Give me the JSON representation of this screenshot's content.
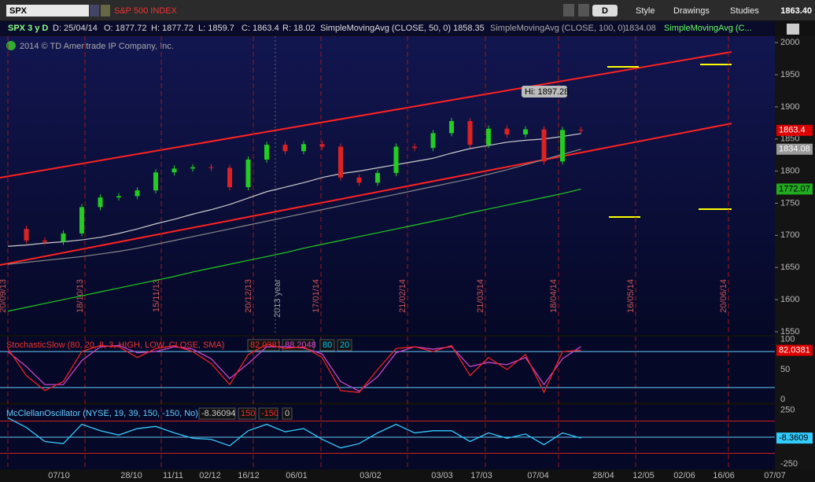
{
  "toolbar": {
    "symbol": "SPX",
    "description": "S&P 500 INDEX",
    "aggregation": "D",
    "style": "Style",
    "drawings": "Drawings",
    "studies": "Studies",
    "last": "1863.40"
  },
  "info_bar": {
    "chart": "SPX 3 y D",
    "date": "D: 25/04/14",
    "open": "O: 1877.72",
    "high": "H: 1877.72",
    "low": "L: 1859.7",
    "close": "C: 1863.4",
    "range": "R: 18.02",
    "sma1_name": "SimpleMovingAvg (CLOSE, 50, 0)",
    "sma1_value": "1858.35",
    "sma2_name": "SimpleMovingAvg (CLOSE, 100, 0)",
    "sma2_value": "1834.08",
    "sma3_name": "SimpleMovingAvg (C..."
  },
  "copyright": "2014 © TD Ameritrade IP Company, Inc.",
  "price_panel": {
    "ylim": [
      1545,
      2010
    ],
    "yticks": [
      2000,
      1950,
      1900,
      1850,
      1800,
      1750,
      1700,
      1650,
      1600,
      1550
    ],
    "closes": [
      1710,
      1692,
      1690,
      1703,
      1744,
      1759,
      1761,
      1770,
      1798,
      1804,
      1806,
      1805,
      1775,
      1818,
      1841,
      1831,
      1842,
      1838,
      1790,
      1782,
      1797,
      1838,
      1836,
      1859,
      1878,
      1841,
      1866,
      1857,
      1865,
      1815,
      1864,
      1863.4
    ],
    "sma50": [
      1683,
      1685,
      1688,
      1690,
      1693,
      1697,
      1703,
      1710,
      1718,
      1725,
      1733,
      1740,
      1748,
      1758,
      1768,
      1775,
      1782,
      1790,
      1796,
      1800,
      1805,
      1810,
      1815,
      1820,
      1828,
      1835,
      1840,
      1845,
      1848,
      1850,
      1854,
      1858.35
    ],
    "sma100": [
      1655,
      1658,
      1661,
      1664,
      1667,
      1671,
      1675,
      1680,
      1686,
      1692,
      1698,
      1704,
      1710,
      1716,
      1722,
      1728,
      1734,
      1740,
      1746,
      1752,
      1758,
      1764,
      1770,
      1776,
      1782,
      1788,
      1795,
      1802,
      1810,
      1818,
      1826,
      1834.08
    ],
    "sma3": [
      1582,
      1588,
      1594,
      1600,
      1606,
      1612,
      1618,
      1624,
      1630,
      1636,
      1643,
      1649,
      1655,
      1661,
      1667,
      1673,
      1680,
      1686,
      1692,
      1698,
      1704,
      1710,
      1716,
      1722,
      1728,
      1735,
      1741,
      1747,
      1753,
      1759,
      1765,
      1772.07
    ],
    "last_label": "1863.4",
    "sma2_label": "1834.08",
    "sma3_label": "1772.07",
    "high_label": "Hi: 1897.28",
    "expiration_dates": [
      "20/09/13",
      "18/10/13",
      "15/11/13",
      "20/12/13",
      "17/01/14",
      "21/02/14",
      "21/03/14",
      "18/04/14",
      "16/05/14",
      "20/06/14"
    ],
    "year_label": "2013 year"
  },
  "stochastic": {
    "title": "StochasticSlow (80, 20, 8, 3, HIGH, LOW, CLOSE, SMA)",
    "k_label": "82.0381",
    "d_label": "88.2048",
    "levels": [
      80,
      20
    ],
    "ylim": [
      -5,
      105
    ],
    "yticks": [
      100,
      50,
      0
    ],
    "right_label": "82.0381",
    "k": [
      85,
      40,
      15,
      30,
      80,
      90,
      88,
      70,
      85,
      90,
      80,
      60,
      25,
      75,
      92,
      85,
      88,
      70,
      15,
      12,
      50,
      85,
      88,
      80,
      90,
      40,
      70,
      50,
      75,
      12,
      80,
      82.0381
    ],
    "d": [
      80,
      55,
      25,
      25,
      65,
      88,
      90,
      78,
      80,
      88,
      84,
      68,
      35,
      60,
      88,
      88,
      86,
      76,
      30,
      14,
      38,
      78,
      88,
      84,
      88,
      55,
      62,
      58,
      70,
      25,
      68,
      88.2048
    ]
  },
  "mcclellan": {
    "title": "McClellanOscillator (NYSE, 19, 39, 150, -150, No)",
    "value_label": "-8.36094",
    "levels": [
      150,
      -150,
      0
    ],
    "ylim": [
      -300,
      300
    ],
    "yticks": [
      250,
      0,
      -250
    ],
    "right_label": "-8.3609",
    "values": [
      180,
      90,
      -40,
      -60,
      120,
      60,
      20,
      80,
      100,
      40,
      -10,
      -20,
      -80,
      60,
      120,
      50,
      80,
      -20,
      -100,
      -60,
      40,
      120,
      40,
      60,
      60,
      -40,
      40,
      -10,
      30,
      -70,
      40,
      -8.36094
    ]
  },
  "time_axis": [
    "07/10",
    "28/10",
    "11/11",
    "02/12",
    "16/12",
    "06/01",
    "03/02",
    "03/03",
    "17/03",
    "07/04",
    "28/04",
    "12/05",
    "02/06",
    "16/06",
    "07/07"
  ]
}
